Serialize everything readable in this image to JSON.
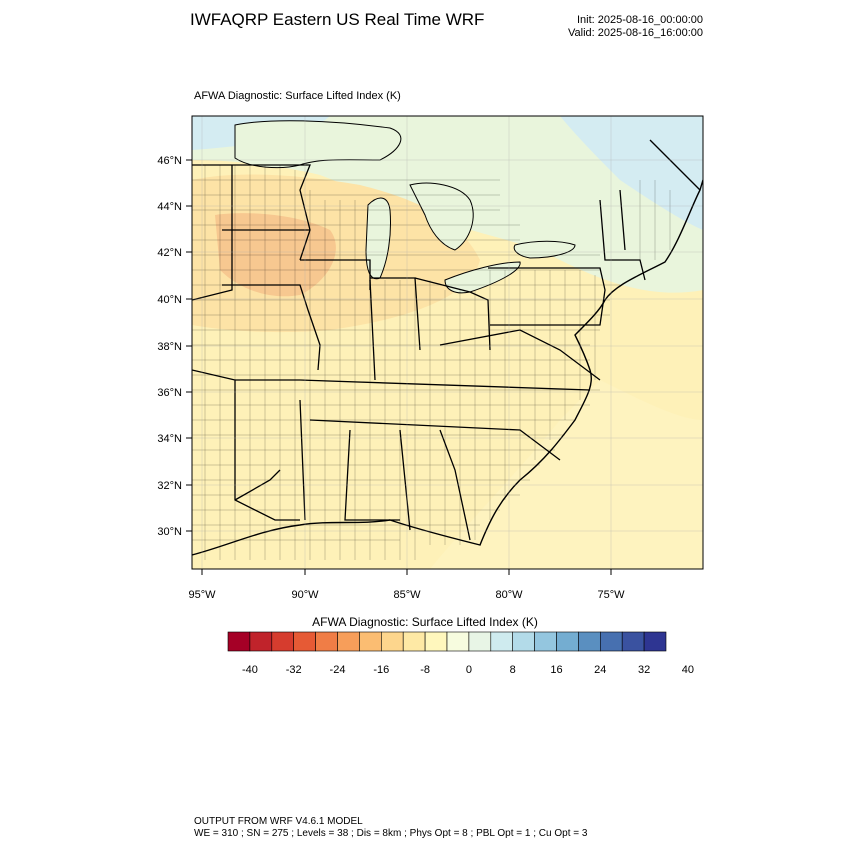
{
  "header": {
    "title": "IWFAQRP Eastern US Real Time WRF",
    "init": "Init: 2025-08-16_00:00:00",
    "valid": "Valid: 2025-08-16_16:00:00"
  },
  "panel_label": "AFWA Diagnostic: Surface Lifted Index   (K)",
  "map": {
    "region": "Eastern United States",
    "lat_labels": [
      "46°N",
      "44°N",
      "42°N",
      "40°N",
      "38°N",
      "36°N",
      "34°N",
      "32°N",
      "30°N"
    ],
    "lon_labels": [
      "95°W",
      "90°W",
      "85°W",
      "80°W",
      "75°W"
    ],
    "field_colors": {
      "warm_core": "#f7c890",
      "warm": "#fde3a6",
      "neutral": "#fef1b8",
      "cool": "#e9f5dc",
      "cooler": "#d4ecf2"
    }
  },
  "colorbar": {
    "title": "AFWA Diagnostic: Surface Lifted Index  (K)",
    "tick_labels": [
      "-40",
      "-32",
      "-24",
      "-16",
      "-8",
      "0",
      "8",
      "16",
      "24",
      "32",
      "40"
    ],
    "colors": [
      "#a50026",
      "#c0232b",
      "#d63c2e",
      "#e65a35",
      "#f07d46",
      "#f79e5a",
      "#fbbd72",
      "#fdd68d",
      "#fee9a5",
      "#fff7bd",
      "#f7fcdf",
      "#e8f5e6",
      "#cfebef",
      "#b3dbe9",
      "#94c6df",
      "#74add1",
      "#5a8fc0",
      "#4770b0",
      "#3a52a0",
      "#2e3592"
    ]
  },
  "footer": {
    "line1": "OUTPUT FROM WRF V4.6.1 MODEL",
    "line2": "WE = 310 ; SN = 275 ; Levels = 38 ; Dis = 8km ; Phys Opt = 8 ; PBL Opt = 1 ; Cu Opt = 3"
  }
}
